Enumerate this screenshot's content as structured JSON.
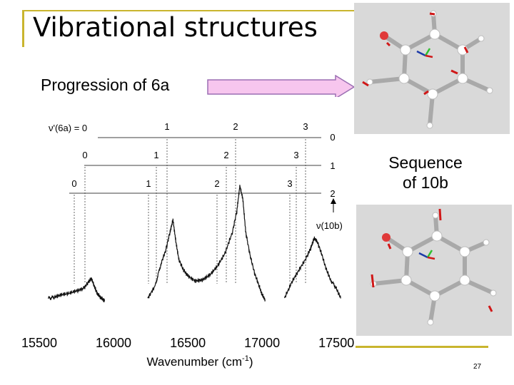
{
  "slide": {
    "title": "Vibrational structures",
    "subtitle": "Progression of 6a",
    "sequence_line1": "Sequence",
    "sequence_line2": "of 10b",
    "page_number": "27",
    "accent_color": "#c9b52e",
    "arrow_color": "#f7c6ee"
  },
  "spectrum": {
    "xlabel": "Wavenumber (cm",
    "xlabel_sup": "-1",
    "xlabel_end": ")",
    "x_ticks": [
      "15500",
      "16000",
      "16500",
      "17000",
      "17500"
    ],
    "levels_6a_label": "ν'(6a) = 0",
    "levels_10b_label": "ν(10b)",
    "row_right_labels": [
      "0",
      "1",
      "2"
    ],
    "row0_labels": [
      "1",
      "2",
      "3"
    ],
    "row1_labels": [
      "0",
      "1",
      "2",
      "3"
    ],
    "row2_labels": [
      "0",
      "1",
      "2",
      "3"
    ]
  },
  "chart_data": {
    "type": "line",
    "title": "",
    "xlabel": "Wavenumber (cm-1)",
    "ylabel": "",
    "xlim": [
      15500,
      17600
    ],
    "grid": false,
    "series": [
      {
        "x": [
          15560,
          15600,
          15650,
          15700,
          15750,
          15800,
          15830,
          15850,
          15870,
          15890,
          15910,
          15930,
          15940
        ],
        "y": [
          0.02,
          0.03,
          0.05,
          0.06,
          0.08,
          0.1,
          0.15,
          0.18,
          0.12,
          0.06,
          0.03,
          0.01,
          0.0
        ]
      },
      {
        "x": [
          16230,
          16280,
          16320,
          16350,
          16380,
          16400,
          16420,
          16440,
          16470,
          16500,
          16550,
          16600,
          16650,
          16700,
          16750,
          16800,
          16830,
          16850,
          16870,
          16890,
          16920,
          16950,
          16980,
          17000,
          17020
        ],
        "y": [
          0.02,
          0.12,
          0.3,
          0.4,
          0.55,
          0.65,
          0.47,
          0.33,
          0.25,
          0.2,
          0.16,
          0.17,
          0.21,
          0.28,
          0.38,
          0.55,
          0.72,
          0.92,
          0.82,
          0.55,
          0.36,
          0.22,
          0.12,
          0.05,
          0.01
        ]
      },
      {
        "x": [
          17150,
          17200,
          17250,
          17300,
          17330,
          17350,
          17370,
          17400,
          17430,
          17460,
          17500,
          17530
        ],
        "y": [
          0.02,
          0.15,
          0.25,
          0.35,
          0.43,
          0.5,
          0.48,
          0.38,
          0.26,
          0.17,
          0.1,
          0.02
        ]
      }
    ]
  }
}
